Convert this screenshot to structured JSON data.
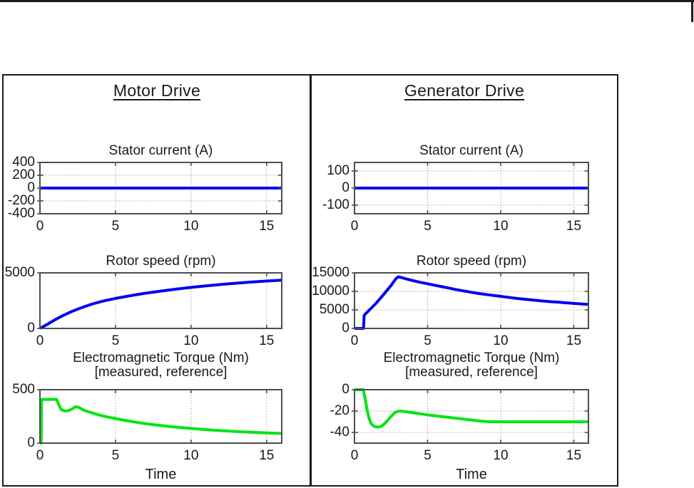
{
  "window": {
    "background": "#ffffff"
  },
  "decorations": {
    "top_rule": "page-top-rule",
    "top_right_tick": "page-corner-tick"
  },
  "panel": {
    "columns": [
      {
        "title": "Motor Drive"
      },
      {
        "title": "Generator Drive"
      }
    ]
  },
  "colors": {
    "line_blue": "#0000f0",
    "line_green": "#00e512",
    "grid": "#9a9a9a",
    "axis": "#4d4d4d",
    "text": "#1a1a1a",
    "frame": "#1a1a1a"
  },
  "chart_data": [
    {
      "id": "motor-stator-current",
      "column": "Motor Drive",
      "type": "line",
      "title": "Stator current (A)",
      "subtitle": "",
      "xlabel": "",
      "xlim": [
        0,
        16
      ],
      "ylim": [
        -400,
        400
      ],
      "xticks": [
        0,
        5,
        10,
        15
      ],
      "yticks": [
        400,
        200,
        0,
        -200,
        -400
      ],
      "xgrid": [
        5,
        10,
        15
      ],
      "ygrid": [
        200,
        -200
      ],
      "series": [
        {
          "name": "stator-current",
          "color": "#0000f0",
          "points": [
            [
              0,
              0
            ],
            [
              16,
              0
            ]
          ]
        }
      ]
    },
    {
      "id": "generator-stator-current",
      "column": "Generator Drive",
      "type": "line",
      "title": "Stator current (A)",
      "subtitle": "",
      "xlabel": "",
      "xlim": [
        0,
        16
      ],
      "ylim": [
        -150,
        150
      ],
      "xticks": [
        0,
        5,
        10,
        15
      ],
      "yticks": [
        100,
        0,
        -100
      ],
      "xgrid": [
        5,
        10,
        15
      ],
      "ygrid": [
        100,
        -100
      ],
      "series": [
        {
          "name": "stator-current",
          "color": "#0000f0",
          "points": [
            [
              0,
              0
            ],
            [
              16,
              0
            ]
          ]
        }
      ]
    },
    {
      "id": "motor-rotor-speed",
      "column": "Motor Drive",
      "type": "line",
      "title": "Rotor speed (rpm)",
      "subtitle": "",
      "xlabel": "",
      "xlim": [
        0,
        16
      ],
      "ylim": [
        0,
        5000
      ],
      "xticks": [
        0,
        5,
        10,
        15
      ],
      "yticks": [
        5000,
        0
      ],
      "xgrid": [
        5,
        10,
        15
      ],
      "ygrid": [],
      "series": [
        {
          "name": "rotor-speed",
          "color": "#0000f0",
          "points": [
            [
              0,
              0
            ],
            [
              0.5,
              380
            ],
            [
              1,
              780
            ],
            [
              1.5,
              1140
            ],
            [
              2,
              1460
            ],
            [
              2.5,
              1740
            ],
            [
              3,
              1990
            ],
            [
              3.5,
              2210
            ],
            [
              4,
              2400
            ],
            [
              4.5,
              2560
            ],
            [
              5,
              2700
            ],
            [
              6,
              2950
            ],
            [
              7,
              3170
            ],
            [
              8,
              3360
            ],
            [
              9,
              3530
            ],
            [
              10,
              3690
            ],
            [
              11,
              3830
            ],
            [
              12,
              3960
            ],
            [
              13,
              4070
            ],
            [
              14,
              4170
            ],
            [
              15,
              4260
            ],
            [
              16,
              4340
            ]
          ]
        }
      ]
    },
    {
      "id": "generator-rotor-speed",
      "column": "Generator Drive",
      "type": "line",
      "title": "Rotor speed (rpm)",
      "subtitle": "",
      "xlabel": "",
      "xlim": [
        0,
        16
      ],
      "ylim": [
        0,
        15000
      ],
      "xticks": [
        0,
        5,
        10,
        15
      ],
      "yticks": [
        15000,
        10000,
        5000,
        0
      ],
      "xgrid": [
        5,
        10,
        15
      ],
      "ygrid": [
        10000,
        5000
      ],
      "series": [
        {
          "name": "rotor-speed",
          "color": "#0000f0",
          "points": [
            [
              0,
              0
            ],
            [
              0.62,
              0
            ],
            [
              0.66,
              3500
            ],
            [
              0.72,
              3800
            ],
            [
              1,
              4900
            ],
            [
              1.5,
              6900
            ],
            [
              2,
              9200
            ],
            [
              2.5,
              11600
            ],
            [
              2.85,
              13500
            ],
            [
              3,
              13950
            ],
            [
              3.2,
              13750
            ],
            [
              3.5,
              13400
            ],
            [
              4,
              12900
            ],
            [
              4.5,
              12450
            ],
            [
              5,
              12050
            ],
            [
              5.5,
              11650
            ],
            [
              6,
              11250
            ],
            [
              6.5,
              10850
            ],
            [
              7,
              10450
            ],
            [
              7.5,
              10100
            ],
            [
              8,
              9750
            ],
            [
              8.5,
              9430
            ],
            [
              9,
              9150
            ],
            [
              9.5,
              8900
            ],
            [
              10,
              8650
            ],
            [
              10.5,
              8400
            ],
            [
              11,
              8150
            ],
            [
              11.5,
              7950
            ],
            [
              12,
              7750
            ],
            [
              12.5,
              7550
            ],
            [
              13,
              7350
            ],
            [
              13.5,
              7200
            ],
            [
              14,
              7050
            ],
            [
              14.5,
              6900
            ],
            [
              15,
              6750
            ],
            [
              15.5,
              6620
            ],
            [
              16,
              6500
            ]
          ]
        }
      ]
    },
    {
      "id": "motor-torque",
      "column": "Motor Drive",
      "type": "line",
      "title": "Electromagnetic Torque (Nm)",
      "subtitle": "[measured, reference]",
      "xlabel": "Time",
      "xlim": [
        0,
        16
      ],
      "ylim": [
        0,
        500
      ],
      "xticks": [
        0,
        5,
        10,
        15
      ],
      "yticks": [
        500,
        0
      ],
      "xgrid": [
        5,
        10,
        15
      ],
      "ygrid": [],
      "series": [
        {
          "name": "measured-torque",
          "color": "#00e512",
          "points": [
            [
              0,
              0
            ],
            [
              0.08,
              0
            ],
            [
              0.1,
              408
            ],
            [
              1.1,
              410
            ],
            [
              1.25,
              360
            ],
            [
              1.4,
              315
            ],
            [
              1.6,
              302
            ],
            [
              1.85,
              303
            ],
            [
              2.1,
              318
            ],
            [
              2.35,
              340
            ],
            [
              2.55,
              336
            ],
            [
              2.8,
              316
            ],
            [
              3,
              303
            ],
            [
              3.5,
              281
            ],
            [
              4,
              259
            ],
            [
              4.5,
              244
            ],
            [
              5,
              230
            ],
            [
              5.5,
              216
            ],
            [
              6,
              204
            ],
            [
              6.5,
              192
            ],
            [
              7,
              182
            ],
            [
              7.5,
              173
            ],
            [
              8,
              165
            ],
            [
              8.5,
              157
            ],
            [
              9,
              150
            ],
            [
              9.5,
              143
            ],
            [
              10,
              137
            ],
            [
              11,
              126
            ],
            [
              12,
              117
            ],
            [
              13,
              109
            ],
            [
              14,
              102
            ],
            [
              15,
              96
            ],
            [
              16,
              90
            ]
          ]
        }
      ]
    },
    {
      "id": "generator-torque",
      "column": "Generator Drive",
      "type": "line",
      "title": "Electromagnetic Torque (Nm)",
      "subtitle": "[measured, reference]",
      "xlabel": "Time",
      "xlim": [
        0,
        16
      ],
      "ylim": [
        -50,
        0
      ],
      "xticks": [
        0,
        5,
        10,
        15
      ],
      "yticks": [
        0,
        -20,
        -40
      ],
      "xgrid": [
        5,
        10,
        15
      ],
      "ygrid": [
        -20,
        -40
      ],
      "series": [
        {
          "name": "measured-torque",
          "color": "#00e512",
          "points": [
            [
              0,
              0
            ],
            [
              0.6,
              0
            ],
            [
              0.7,
              -6
            ],
            [
              0.85,
              -18
            ],
            [
              1,
              -27
            ],
            [
              1.15,
              -32
            ],
            [
              1.35,
              -34.5
            ],
            [
              1.6,
              -35
            ],
            [
              1.8,
              -34.5
            ],
            [
              2,
              -32.5
            ],
            [
              2.25,
              -29
            ],
            [
              2.5,
              -25
            ],
            [
              2.75,
              -21.5
            ],
            [
              3,
              -20.2
            ],
            [
              3.2,
              -20
            ],
            [
              3.5,
              -20.6
            ],
            [
              4,
              -21.6
            ],
            [
              4.5,
              -22.6
            ],
            [
              5,
              -23.5
            ],
            [
              5.5,
              -24.4
            ],
            [
              6,
              -25.2
            ],
            [
              6.5,
              -26
            ],
            [
              7,
              -26.8
            ],
            [
              7.5,
              -27.6
            ],
            [
              8,
              -28.4
            ],
            [
              8.5,
              -29.2
            ],
            [
              9,
              -29.8
            ],
            [
              9.5,
              -30
            ],
            [
              10,
              -30
            ],
            [
              12,
              -30
            ],
            [
              14,
              -30
            ],
            [
              16,
              -30
            ]
          ]
        }
      ]
    }
  ]
}
